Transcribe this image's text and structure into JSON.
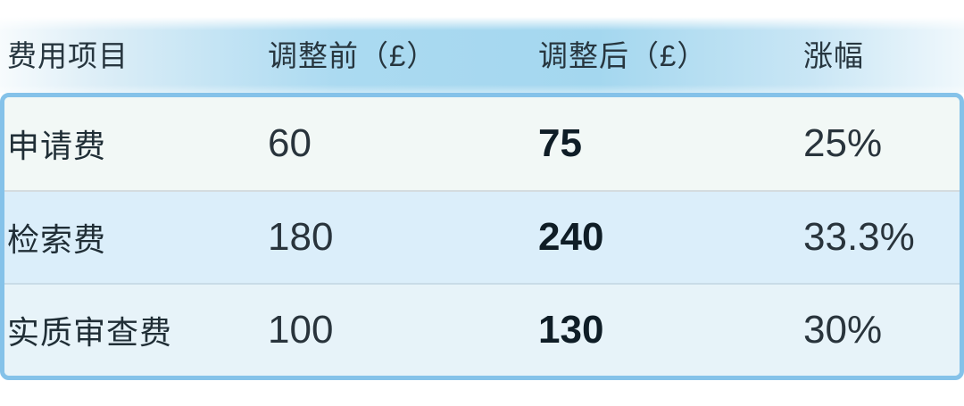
{
  "colors": {
    "header_blue": "#a6d8f0",
    "table_border": "#85c2e9",
    "row1_bg": "#f2f8f6",
    "row2_bg": "#dbeefa",
    "row3_bg": "#e7f3f9",
    "text_dark": "#202e36"
  },
  "chart_data": {
    "type": "table",
    "columns": [
      "费用项目",
      "调整前（£）",
      "调整后（£）",
      "涨幅"
    ],
    "rows": [
      [
        "申请费",
        "60",
        "75",
        "25%"
      ],
      [
        "检索费",
        "180",
        "240",
        "33.3%"
      ],
      [
        "实质审查费",
        "100",
        "130",
        "30%"
      ]
    ],
    "notes_layout": "header gradient blue band; bold values in adjusted-after column"
  }
}
